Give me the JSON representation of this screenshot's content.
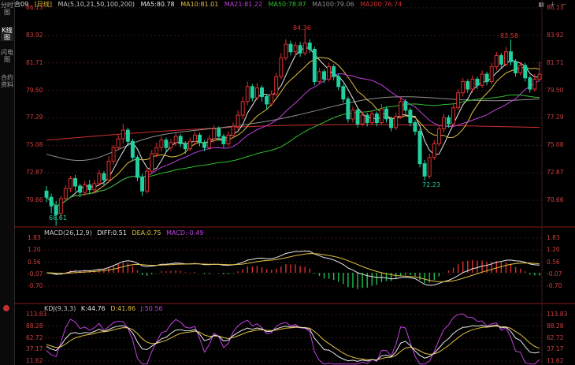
{
  "sidebar": {
    "items": [
      {
        "label": "分时图"
      },
      {
        "label": "K线图"
      },
      {
        "label": "闪电图"
      },
      {
        "label": "合约资料"
      }
    ]
  },
  "header": {
    "symbol": "合09",
    "period": "[日线]",
    "ma_params": "MA(5,10,21,50,100,200)",
    "ma_values": [
      {
        "label": "MA5:80.78",
        "color": "#e8e8e8"
      },
      {
        "label": "MA10:81.01",
        "color": "#e0c040"
      },
      {
        "label": "MA21:81.22",
        "color": "#c040e0"
      },
      {
        "label": "MA50:78.87",
        "color": "#30c030"
      },
      {
        "label": "MA100:79.06",
        "color": "#909090"
      },
      {
        "label": "MA200:76.74",
        "color": "#d03030"
      }
    ]
  },
  "main_chart": {
    "y_ticks": [
      "86.13",
      "83.92",
      "81.71",
      "79.50",
      "77.29",
      "75.08",
      "72.87",
      "70.66"
    ],
    "annotations": {
      "high_left": "84.36",
      "high_right": "83.58",
      "low_left": "68.61",
      "low_mid": "72.23"
    }
  },
  "macd_pane": {
    "title": "MACD(26,12,9)",
    "diff": "DIFF:0.51",
    "dea": "DEA:0.75",
    "macd": "MACD:-0.49",
    "y_ticks": [
      "1.83",
      "1.20",
      "0.56",
      "-0.07",
      "-0.70"
    ]
  },
  "kdj_pane": {
    "title": "KDJ(9,3,3)",
    "k": "K:44.76",
    "d": "D:41.86",
    "j": "J:50.56",
    "y_ticks": [
      "113.83",
      "88.28",
      "62.72",
      "37.17",
      "11.62"
    ]
  },
  "colors": {
    "up": "#e03030",
    "down": "#20d0a0",
    "grid": "#3a1a1a"
  },
  "chart_data": {
    "type": "candlestick",
    "ylim": [
      69.0,
      86.13
    ],
    "candles": [
      {
        "o": 71.4,
        "c": 70.9,
        "h": 71.8,
        "l": 70.5
      },
      {
        "o": 70.9,
        "c": 70.2,
        "h": 71.2,
        "l": 69.6
      },
      {
        "o": 70.2,
        "c": 69.5,
        "h": 70.6,
        "l": 68.61
      },
      {
        "o": 69.6,
        "c": 70.8,
        "h": 71.0,
        "l": 69.3
      },
      {
        "o": 70.8,
        "c": 71.6,
        "h": 71.9,
        "l": 70.6
      },
      {
        "o": 71.6,
        "c": 72.4,
        "h": 72.6,
        "l": 71.3
      },
      {
        "o": 72.4,
        "c": 71.8,
        "h": 72.7,
        "l": 71.4
      },
      {
        "o": 71.8,
        "c": 71.3,
        "h": 72.0,
        "l": 70.9
      },
      {
        "o": 71.3,
        "c": 71.9,
        "h": 72.2,
        "l": 71.0
      },
      {
        "o": 71.9,
        "c": 71.5,
        "h": 72.3,
        "l": 71.2
      },
      {
        "o": 71.5,
        "c": 72.0,
        "h": 72.3,
        "l": 71.2
      },
      {
        "o": 72.0,
        "c": 72.8,
        "h": 73.1,
        "l": 71.8
      },
      {
        "o": 72.8,
        "c": 72.3,
        "h": 73.0,
        "l": 71.8
      },
      {
        "o": 72.3,
        "c": 73.8,
        "h": 74.2,
        "l": 72.1
      },
      {
        "o": 73.8,
        "c": 74.9,
        "h": 75.1,
        "l": 73.5
      },
      {
        "o": 74.9,
        "c": 75.6,
        "h": 75.9,
        "l": 74.7
      },
      {
        "o": 75.6,
        "c": 76.3,
        "h": 76.8,
        "l": 75.2
      },
      {
        "o": 76.3,
        "c": 75.4,
        "h": 76.5,
        "l": 75.0
      },
      {
        "o": 75.4,
        "c": 74.1,
        "h": 75.6,
        "l": 73.8
      },
      {
        "o": 74.1,
        "c": 72.5,
        "h": 74.3,
        "l": 72.2
      },
      {
        "o": 72.5,
        "c": 71.4,
        "h": 72.8,
        "l": 71.0
      },
      {
        "o": 71.4,
        "c": 73.0,
        "h": 73.3,
        "l": 71.2
      },
      {
        "o": 73.0,
        "c": 74.4,
        "h": 74.7,
        "l": 72.8
      },
      {
        "o": 74.4,
        "c": 74.9,
        "h": 75.3,
        "l": 74.1
      },
      {
        "o": 74.9,
        "c": 75.5,
        "h": 75.8,
        "l": 74.6
      },
      {
        "o": 75.5,
        "c": 74.9,
        "h": 75.7,
        "l": 74.6
      },
      {
        "o": 74.9,
        "c": 75.3,
        "h": 75.6,
        "l": 74.6
      },
      {
        "o": 75.3,
        "c": 75.8,
        "h": 76.1,
        "l": 75.0
      },
      {
        "o": 75.8,
        "c": 75.2,
        "h": 76.0,
        "l": 74.9
      },
      {
        "o": 75.2,
        "c": 74.8,
        "h": 75.4,
        "l": 74.4
      },
      {
        "o": 74.8,
        "c": 75.4,
        "h": 75.7,
        "l": 74.6
      },
      {
        "o": 75.4,
        "c": 75.9,
        "h": 76.2,
        "l": 75.1
      },
      {
        "o": 75.9,
        "c": 75.3,
        "h": 76.1,
        "l": 75.0
      },
      {
        "o": 75.3,
        "c": 74.9,
        "h": 75.5,
        "l": 74.6
      },
      {
        "o": 74.9,
        "c": 75.6,
        "h": 75.9,
        "l": 74.7
      },
      {
        "o": 75.6,
        "c": 76.4,
        "h": 76.7,
        "l": 75.3
      },
      {
        "o": 76.4,
        "c": 75.8,
        "h": 76.6,
        "l": 75.5
      },
      {
        "o": 75.8,
        "c": 75.2,
        "h": 76.0,
        "l": 74.9
      },
      {
        "o": 75.2,
        "c": 75.9,
        "h": 76.2,
        "l": 75.0
      },
      {
        "o": 75.9,
        "c": 76.6,
        "h": 76.9,
        "l": 75.7
      },
      {
        "o": 76.6,
        "c": 77.5,
        "h": 77.9,
        "l": 76.3
      },
      {
        "o": 77.5,
        "c": 78.6,
        "h": 79.0,
        "l": 77.2
      },
      {
        "o": 78.6,
        "c": 79.8,
        "h": 80.2,
        "l": 78.3
      },
      {
        "o": 79.8,
        "c": 78.9,
        "h": 80.0,
        "l": 78.6
      },
      {
        "o": 78.9,
        "c": 79.7,
        "h": 80.1,
        "l": 78.7
      },
      {
        "o": 79.7,
        "c": 79.0,
        "h": 79.9,
        "l": 78.6
      },
      {
        "o": 79.0,
        "c": 78.4,
        "h": 79.2,
        "l": 78.0
      },
      {
        "o": 78.4,
        "c": 79.2,
        "h": 79.5,
        "l": 78.2
      },
      {
        "o": 79.2,
        "c": 80.6,
        "h": 80.9,
        "l": 79.0
      },
      {
        "o": 80.6,
        "c": 82.1,
        "h": 82.5,
        "l": 80.4
      },
      {
        "o": 82.1,
        "c": 83.2,
        "h": 83.6,
        "l": 81.9
      },
      {
        "o": 83.2,
        "c": 82.6,
        "h": 83.5,
        "l": 82.3
      },
      {
        "o": 82.6,
        "c": 83.1,
        "h": 83.4,
        "l": 82.2
      },
      {
        "o": 83.1,
        "c": 82.5,
        "h": 83.4,
        "l": 82.2
      },
      {
        "o": 82.5,
        "c": 83.3,
        "h": 84.36,
        "l": 82.3
      },
      {
        "o": 83.3,
        "c": 82.8,
        "h": 83.6,
        "l": 82.5
      },
      {
        "o": 82.8,
        "c": 80.2,
        "h": 83.0,
        "l": 79.9
      },
      {
        "o": 80.2,
        "c": 81.0,
        "h": 81.3,
        "l": 80.0
      },
      {
        "o": 81.0,
        "c": 80.4,
        "h": 81.2,
        "l": 80.1
      },
      {
        "o": 80.4,
        "c": 81.4,
        "h": 81.7,
        "l": 80.2
      },
      {
        "o": 81.4,
        "c": 80.6,
        "h": 81.6,
        "l": 80.3
      },
      {
        "o": 80.6,
        "c": 79.8,
        "h": 80.8,
        "l": 79.5
      },
      {
        "o": 79.8,
        "c": 78.8,
        "h": 80.0,
        "l": 78.5
      },
      {
        "o": 78.8,
        "c": 77.2,
        "h": 79.0,
        "l": 76.9
      },
      {
        "o": 77.2,
        "c": 77.9,
        "h": 78.2,
        "l": 76.9
      },
      {
        "o": 77.9,
        "c": 76.8,
        "h": 78.1,
        "l": 76.5
      },
      {
        "o": 76.8,
        "c": 77.5,
        "h": 77.8,
        "l": 76.6
      },
      {
        "o": 77.5,
        "c": 76.9,
        "h": 77.7,
        "l": 76.6
      },
      {
        "o": 76.9,
        "c": 77.6,
        "h": 77.9,
        "l": 76.7
      },
      {
        "o": 77.6,
        "c": 76.9,
        "h": 77.8,
        "l": 76.6
      },
      {
        "o": 76.9,
        "c": 78.0,
        "h": 78.4,
        "l": 76.7
      },
      {
        "o": 78.0,
        "c": 77.2,
        "h": 78.2,
        "l": 76.9
      },
      {
        "o": 77.2,
        "c": 76.5,
        "h": 77.4,
        "l": 76.2
      },
      {
        "o": 76.5,
        "c": 77.4,
        "h": 77.7,
        "l": 76.3
      },
      {
        "o": 77.4,
        "c": 78.6,
        "h": 78.9,
        "l": 77.2
      },
      {
        "o": 78.6,
        "c": 77.9,
        "h": 78.8,
        "l": 77.6
      },
      {
        "o": 77.9,
        "c": 76.9,
        "h": 78.1,
        "l": 76.6
      },
      {
        "o": 76.9,
        "c": 76.2,
        "h": 77.1,
        "l": 75.9
      },
      {
        "o": 76.2,
        "c": 73.6,
        "h": 76.4,
        "l": 73.3
      },
      {
        "o": 73.6,
        "c": 72.6,
        "h": 73.9,
        "l": 72.23
      },
      {
        "o": 72.6,
        "c": 74.1,
        "h": 74.4,
        "l": 72.4
      },
      {
        "o": 74.1,
        "c": 75.2,
        "h": 75.5,
        "l": 73.9
      },
      {
        "o": 75.2,
        "c": 76.4,
        "h": 76.7,
        "l": 75.0
      },
      {
        "o": 76.4,
        "c": 77.3,
        "h": 77.6,
        "l": 76.1
      },
      {
        "o": 77.3,
        "c": 76.8,
        "h": 77.5,
        "l": 76.5
      },
      {
        "o": 76.8,
        "c": 78.1,
        "h": 78.4,
        "l": 76.6
      },
      {
        "o": 78.1,
        "c": 79.3,
        "h": 79.6,
        "l": 77.9
      },
      {
        "o": 79.3,
        "c": 80.2,
        "h": 80.5,
        "l": 79.0
      },
      {
        "o": 80.2,
        "c": 79.6,
        "h": 80.4,
        "l": 79.3
      },
      {
        "o": 79.6,
        "c": 80.4,
        "h": 80.7,
        "l": 79.3
      },
      {
        "o": 80.4,
        "c": 79.9,
        "h": 80.6,
        "l": 79.6
      },
      {
        "o": 79.9,
        "c": 80.8,
        "h": 81.1,
        "l": 79.7
      },
      {
        "o": 80.8,
        "c": 80.2,
        "h": 81.0,
        "l": 79.9
      },
      {
        "o": 80.2,
        "c": 81.4,
        "h": 81.7,
        "l": 80.0
      },
      {
        "o": 81.4,
        "c": 82.3,
        "h": 82.6,
        "l": 81.1
      },
      {
        "o": 82.3,
        "c": 81.6,
        "h": 82.5,
        "l": 81.3
      },
      {
        "o": 81.6,
        "c": 82.6,
        "h": 83.0,
        "l": 81.4
      },
      {
        "o": 82.6,
        "c": 81.8,
        "h": 83.58,
        "l": 81.5
      },
      {
        "o": 81.8,
        "c": 80.9,
        "h": 82.0,
        "l": 80.6
      },
      {
        "o": 80.9,
        "c": 81.5,
        "h": 81.8,
        "l": 80.7
      },
      {
        "o": 81.5,
        "c": 80.5,
        "h": 81.7,
        "l": 80.2
      },
      {
        "o": 80.5,
        "c": 79.6,
        "h": 80.7,
        "l": 79.3
      },
      {
        "o": 79.6,
        "c": 80.4,
        "h": 80.8,
        "l": 79.4
      },
      {
        "o": 80.4,
        "c": 80.8,
        "h": 81.8,
        "l": 80.2
      }
    ]
  }
}
